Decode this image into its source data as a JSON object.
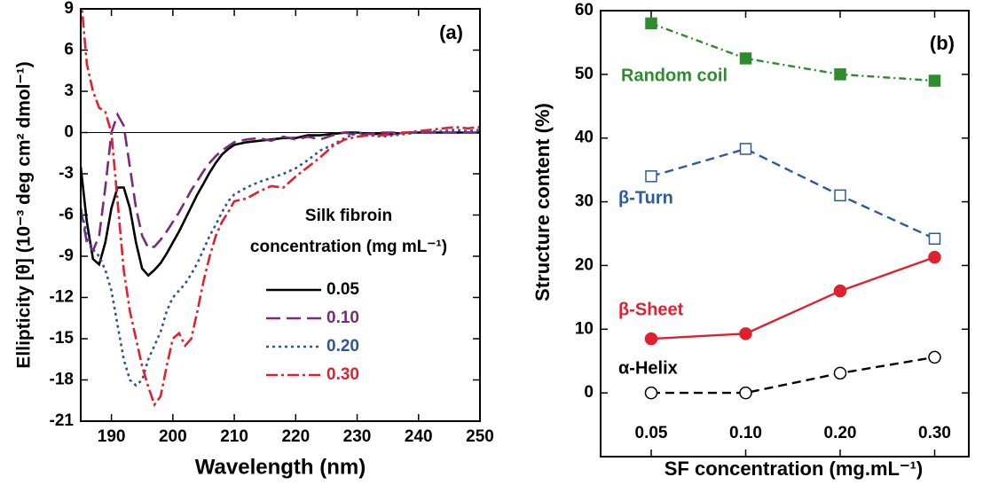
{
  "chart_data": [
    {
      "type": "line",
      "annotation": "(a)",
      "x_label": "Wavelength (nm)",
      "y_label": "Ellipticity [θ] (10⁻³ deg cm² dmol⁻¹)",
      "legend_title": [
        "Silk fibroin",
        "concentration (mg mL⁻¹)"
      ],
      "xlim": [
        185,
        250
      ],
      "ylim": [
        -21,
        9
      ],
      "xticks": [
        190,
        200,
        210,
        220,
        230,
        240,
        250
      ],
      "yticks": [
        9,
        6,
        3,
        0,
        -3,
        -6,
        -9,
        -12,
        -15,
        -18,
        -21
      ],
      "x": [
        185,
        186,
        187,
        188,
        189,
        190,
        191,
        192,
        193,
        194,
        195,
        196,
        197,
        198,
        199,
        200,
        201,
        202,
        203,
        204,
        205,
        206,
        207,
        208,
        209,
        210,
        212,
        214,
        216,
        218,
        220,
        222,
        224,
        226,
        228,
        230,
        232,
        234,
        236,
        238,
        240,
        242,
        244,
        246,
        248,
        250
      ],
      "series": [
        {
          "name": "0.05",
          "color": "#000000",
          "dash": "none",
          "values": [
            -2.5,
            -6.5,
            -9.2,
            -9.6,
            -8.0,
            -5.5,
            -4.0,
            -4.0,
            -5.5,
            -8.0,
            -9.9,
            -10.4,
            -10.0,
            -9.5,
            -8.8,
            -8.0,
            -7.2,
            -6.3,
            -5.4,
            -4.5,
            -3.7,
            -2.9,
            -2.2,
            -1.6,
            -1.2,
            -0.9,
            -0.7,
            -0.6,
            -0.5,
            -0.4,
            -0.4,
            -0.2,
            -0.2,
            -0.1,
            0,
            0,
            -0.1,
            -0.1,
            -0.1,
            0,
            0,
            0,
            0,
            0,
            0,
            0
          ]
        },
        {
          "name": "0.10",
          "color": "#7b2a7b",
          "dash": "16 7",
          "values": [
            -5.5,
            -8.0,
            -8.6,
            -7.5,
            -4.0,
            0,
            1.3,
            0.5,
            -2.5,
            -5.5,
            -7.5,
            -8.4,
            -8.3,
            -7.8,
            -7.2,
            -6.5,
            -5.8,
            -5.0,
            -4.2,
            -3.5,
            -2.8,
            -2.2,
            -1.7,
            -1.3,
            -1.0,
            -0.7,
            -0.5,
            -0.4,
            -0.6,
            -0.3,
            -0.5,
            -0.3,
            -0.5,
            -0.2,
            0,
            -0.2,
            -0.1,
            0,
            0,
            0,
            0,
            0,
            0,
            0,
            0,
            0
          ]
        },
        {
          "name": "0.20",
          "color": "#2f5597",
          "dash": "3 4",
          "values": [
            -5.5,
            -7.5,
            -8.5,
            -9.0,
            -10.0,
            -11.5,
            -14.0,
            -16.5,
            -18.0,
            -18.4,
            -18.0,
            -16.5,
            -15.5,
            -14.5,
            -13.0,
            -12.0,
            -11.5,
            -11.0,
            -10.3,
            -9.5,
            -8.5,
            -7.5,
            -6.7,
            -5.8,
            -5.0,
            -4.5,
            -4.0,
            -3.6,
            -3.3,
            -3.0,
            -2.6,
            -2.0,
            -1.3,
            -0.9,
            -0.4,
            0,
            -0.2,
            -0.3,
            -0.2,
            -0.1,
            0,
            0.1,
            0.1,
            0.2,
            0.1,
            0.2
          ]
        },
        {
          "name": "0.30",
          "color": "#e3202e",
          "dash": "13 4 3 4",
          "values": [
            10,
            5,
            3,
            1.8,
            1.5,
            0,
            -5,
            -10,
            -13,
            -15,
            -17,
            -18.5,
            -19.8,
            -19.2,
            -17,
            -15,
            -14.6,
            -15.5,
            -15,
            -13,
            -10.8,
            -9,
            -7.5,
            -6.5,
            -5.8,
            -5.0,
            -4.8,
            -4.3,
            -3.9,
            -4.0,
            -3.2,
            -2.5,
            -1.8,
            -1.0,
            -0.5,
            -0.3,
            -0.2,
            -0.2,
            -0.1,
            0,
            0.1,
            0.2,
            0.3,
            0.4,
            0.3,
            0.4
          ]
        }
      ]
    },
    {
      "type": "line",
      "annotation": "(b)",
      "x_label": "SF concentration (mg.mL⁻¹)",
      "y_label": "Structure content (%)",
      "categories": [
        "0.05",
        "0.10",
        "0.20",
        "0.30"
      ],
      "ylim": [
        -10,
        60
      ],
      "yticks": [
        0,
        10,
        20,
        30,
        40,
        50,
        60
      ],
      "series": [
        {
          "name": "Random coil",
          "color": "#2e8b2e",
          "dash": "8 4 2 4",
          "marker": "square",
          "filled": true,
          "values": [
            58,
            52.5,
            50,
            49
          ]
        },
        {
          "name": "β-Turn",
          "color": "#2c5aa0",
          "dash": "10 6",
          "marker": "square",
          "filled": false,
          "values": [
            34,
            38.3,
            31,
            24.2
          ]
        },
        {
          "name": "β-Sheet",
          "color": "#e0202e",
          "dash": "none",
          "marker": "circle",
          "filled": true,
          "values": [
            8.5,
            9.3,
            16,
            21.3
          ]
        },
        {
          "name": "α-Helix",
          "color": "#000000",
          "dash": "10 6",
          "marker": "circle",
          "filled": false,
          "values": [
            0,
            0,
            3.1,
            5.6
          ]
        }
      ]
    }
  ]
}
